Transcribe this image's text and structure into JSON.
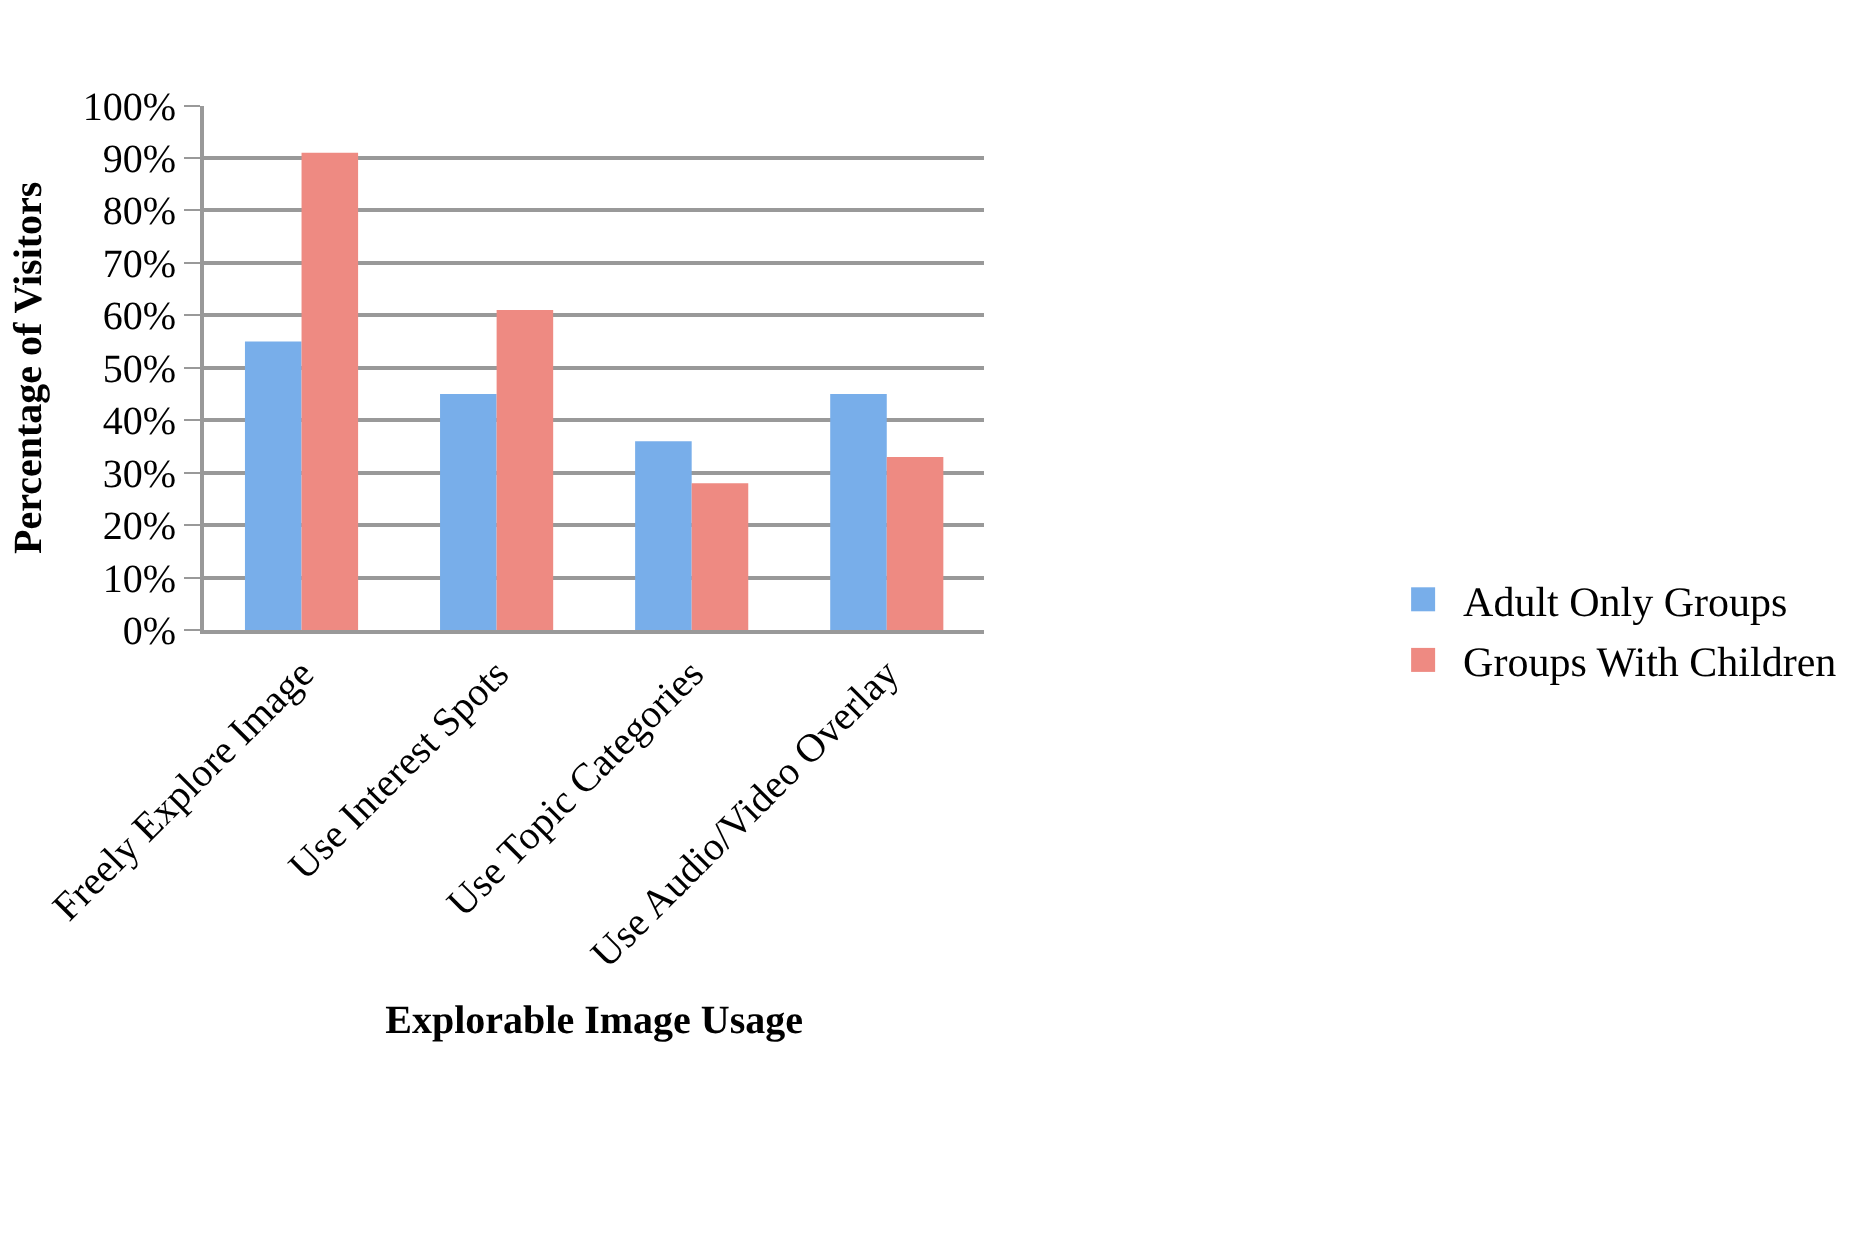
{
  "chart_data": {
    "type": "bar",
    "xlabel": "Explorable Image Usage",
    "ylabel": "Percentage of Visitors",
    "categories": [
      "Freely Explore Image",
      "Use Interest Spots",
      "Use Topic Categories",
      "Use Audio/Video Overlay"
    ],
    "series": [
      {
        "name": "Adult Only Groups",
        "color": "#78aeea",
        "values": [
          55,
          45,
          36,
          45
        ]
      },
      {
        "name": "Groups With Children",
        "color": "#ee8a82",
        "values": [
          91,
          61,
          28,
          33
        ]
      }
    ],
    "ylim": [
      0,
      100
    ],
    "yticks": [
      {
        "value": 0,
        "label": "0%"
      },
      {
        "value": 10,
        "label": "10%"
      },
      {
        "value": 20,
        "label": "20%"
      },
      {
        "value": 30,
        "label": "30%"
      },
      {
        "value": 40,
        "label": "40%"
      },
      {
        "value": 50,
        "label": "50%"
      },
      {
        "value": 60,
        "label": "60%"
      },
      {
        "value": 70,
        "label": "70%"
      },
      {
        "value": 80,
        "label": "80%"
      },
      {
        "value": 90,
        "label": "90%"
      },
      {
        "value": 100,
        "label": "100%"
      }
    ],
    "grid": "y",
    "legend": "right"
  }
}
